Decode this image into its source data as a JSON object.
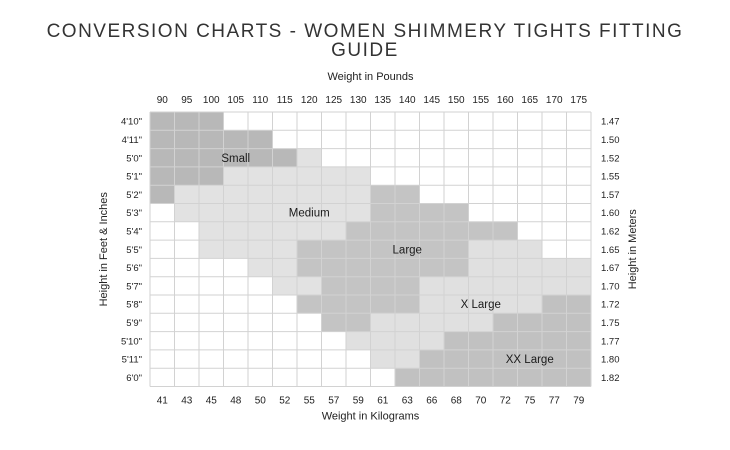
{
  "page": {
    "title": "CONVERSION CHARTS - WOMEN SHIMMERY TIGHTS FITTING GUIDE"
  },
  "chart_data": {
    "type": "heatmap",
    "title": "CONVERSION CHARTS - WOMEN SHIMMERY TIGHTS FITTING GUIDE",
    "top_axis_label": "Weight in Pounds",
    "bottom_axis_label": "Weight in Kilograms",
    "left_axis_label": "Height in Feet & Inches",
    "right_axis_label": "Height in Meters",
    "pounds": [
      "90",
      "95",
      "100",
      "105",
      "110",
      "115",
      "120",
      "125",
      "130",
      "135",
      "140",
      "145",
      "150",
      "155",
      "160",
      "165",
      "170",
      "175"
    ],
    "kilograms": [
      "41",
      "43",
      "45",
      "48",
      "50",
      "52",
      "55",
      "57",
      "59",
      "61",
      "63",
      "66",
      "68",
      "70",
      "72",
      "75",
      "77",
      "79"
    ],
    "heights_ft": [
      "4'10\"",
      "4'11\"",
      "5'0\"",
      "5'1\"",
      "5'2\"",
      "5'3\"",
      "5'4\"",
      "5'5\"",
      "5'6\"",
      "5'7\"",
      "5'8\"",
      "5'9\"",
      "5'10\"",
      "5'11\"",
      "6'0\""
    ],
    "heights_m": [
      "1.47",
      "1.50",
      "1.52",
      "1.55",
      "1.57",
      "1.60",
      "1.62",
      "1.65",
      "1.67",
      "1.70",
      "1.72",
      "1.75",
      "1.77",
      "1.80",
      "1.82"
    ],
    "sizes": [
      {
        "name": "Small",
        "color": "#b8b8b8"
      },
      {
        "name": "Medium",
        "color": "#e2e2e2"
      },
      {
        "name": "Large",
        "color": "#c4c4c4"
      },
      {
        "name": "X Large",
        "color": "#e0e0e0"
      },
      {
        "name": "XX Large",
        "color": "#c1c1c1"
      }
    ],
    "empty_color": "#ffffff",
    "grid_color": "#d2d2d2",
    "size_ranges_by_height": [
      [
        [
          0,
          0,
          2
        ]
      ],
      [
        [
          0,
          0,
          4
        ]
      ],
      [
        [
          0,
          0,
          5
        ],
        [
          1,
          6,
          6
        ]
      ],
      [
        [
          0,
          0,
          2
        ],
        [
          1,
          3,
          8
        ]
      ],
      [
        [
          0,
          0,
          0
        ],
        [
          1,
          1,
          8
        ],
        [
          2,
          9,
          10
        ]
      ],
      [
        [
          1,
          1,
          8
        ],
        [
          2,
          9,
          12
        ]
      ],
      [
        [
          1,
          2,
          7
        ],
        [
          2,
          8,
          14
        ]
      ],
      [
        [
          1,
          2,
          5
        ],
        [
          2,
          6,
          12
        ],
        [
          3,
          13,
          15
        ]
      ],
      [
        [
          1,
          4,
          5
        ],
        [
          2,
          6,
          12
        ],
        [
          3,
          13,
          17
        ]
      ],
      [
        [
          1,
          5,
          6
        ],
        [
          2,
          7,
          10
        ],
        [
          3,
          11,
          17
        ]
      ],
      [
        [
          2,
          6,
          10
        ],
        [
          3,
          11,
          15
        ],
        [
          4,
          16,
          17
        ]
      ],
      [
        [
          2,
          7,
          8
        ],
        [
          3,
          9,
          13
        ],
        [
          4,
          14,
          17
        ]
      ],
      [
        [
          3,
          8,
          11
        ],
        [
          4,
          12,
          17
        ]
      ],
      [
        [
          3,
          9,
          10
        ],
        [
          4,
          11,
          17
        ]
      ],
      [
        [
          4,
          10,
          17
        ]
      ]
    ],
    "size_labels": [
      {
        "text": "Small",
        "row": 2,
        "col": 3
      },
      {
        "text": "Medium",
        "row": 5,
        "col": 6
      },
      {
        "text": "Large",
        "row": 7,
        "col": 10
      },
      {
        "text": "X Large",
        "row": 10,
        "col": 13
      },
      {
        "text": "XX Large",
        "row": 13,
        "col": 15
      }
    ]
  }
}
